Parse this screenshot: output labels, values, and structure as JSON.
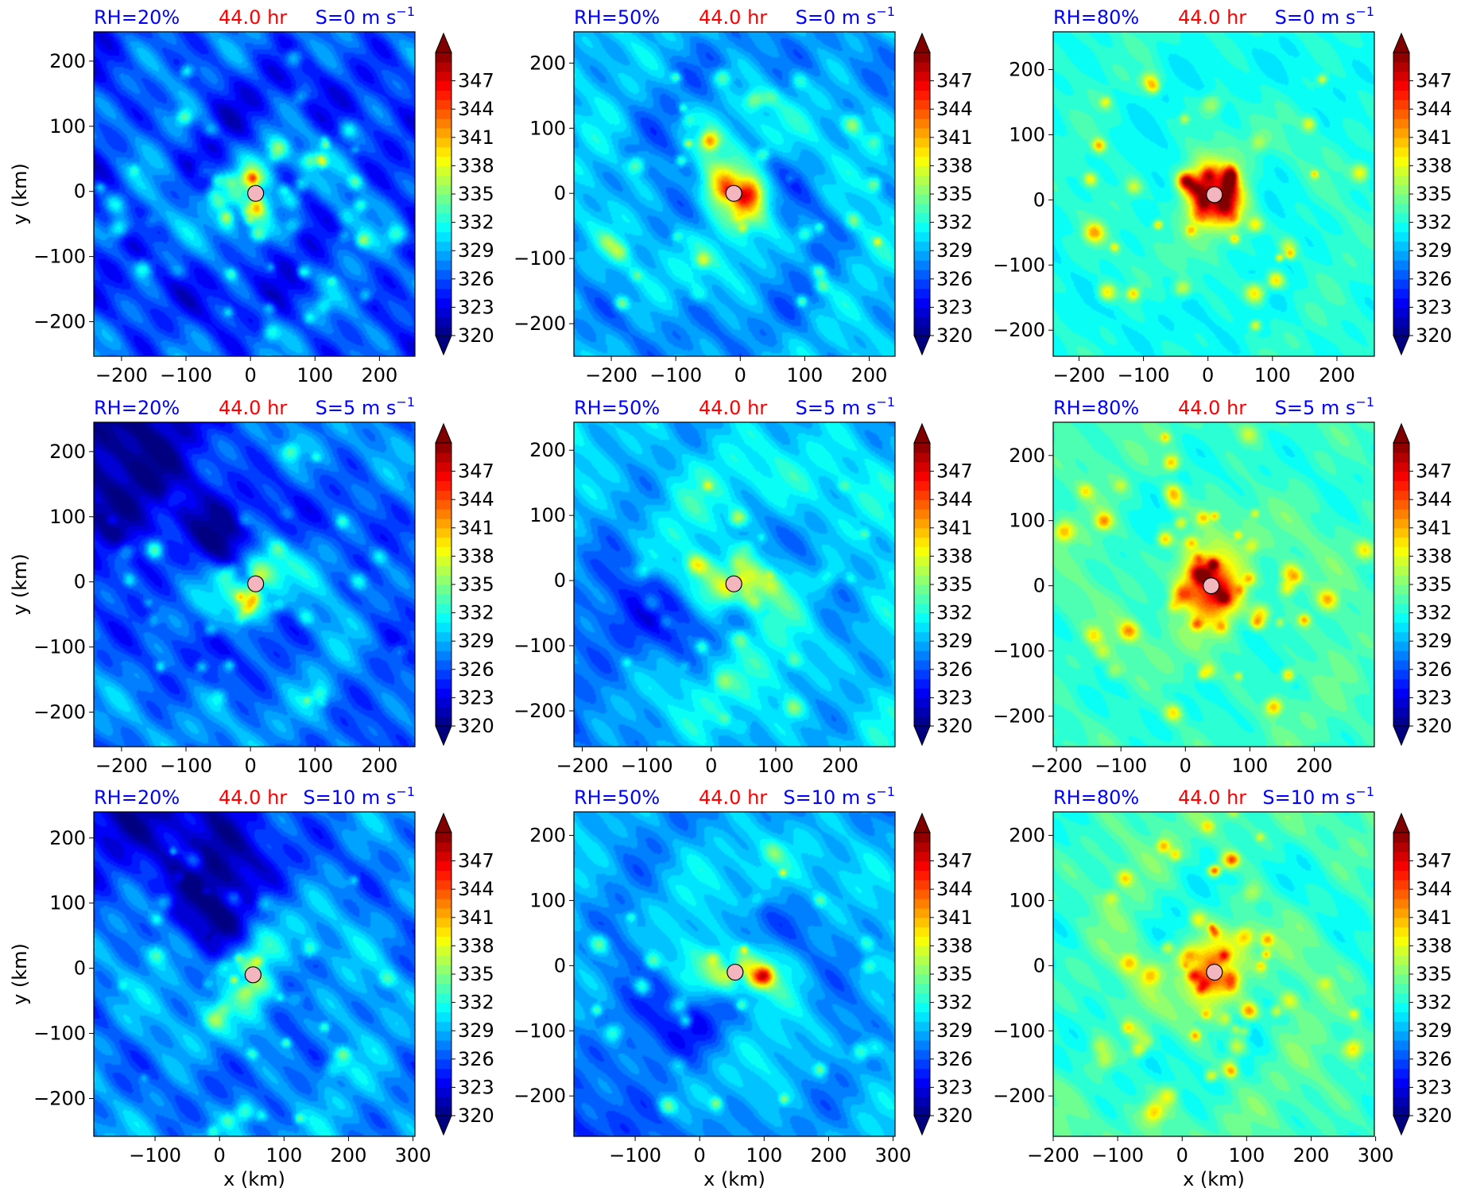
{
  "figure": {
    "xlabel": "x (km)",
    "ylabel": "y (km)",
    "colorbar_ticks": [
      320,
      323,
      326,
      329,
      332,
      335,
      338,
      341,
      344,
      347
    ],
    "colorbar_range": [
      320,
      350
    ],
    "colorbar_extend": "both",
    "colormap": "jet",
    "title_colors": {
      "rh": "#0000ff",
      "time": "#ff0000",
      "shear": "#0000ff"
    },
    "marker_color": "#f4b6be"
  },
  "chart_data": [
    {
      "type": "heatmap",
      "rh_label": "RH=20%",
      "time_label": "44.0 hr",
      "shear_label": "S=0 m s",
      "shear_exp": "−1",
      "x_ticks": [
        -200,
        -100,
        0,
        100,
        200
      ],
      "y_ticks": [
        200,
        100,
        0,
        -100,
        -200
      ],
      "xlim": [
        -243,
        255
      ],
      "ylim": [
        -253,
        245
      ],
      "center": [
        8,
        -3
      ],
      "bg_level": 326,
      "core_level": 334,
      "spiral_amp": 3,
      "noise_amp": 2.2,
      "gap_strength": 0,
      "cells": 0.8,
      "cell_level": 334
    },
    {
      "type": "heatmap",
      "rh_label": "RH=50%",
      "time_label": "44.0 hr",
      "shear_label": "S=0 m s",
      "shear_exp": "−1",
      "x_ticks": [
        -200,
        -100,
        0,
        100,
        200
      ],
      "y_ticks": [
        200,
        100,
        0,
        -100,
        -200
      ],
      "xlim": [
        -258,
        240
      ],
      "ylim": [
        -250,
        248
      ],
      "center": [
        -10,
        0
      ],
      "bg_level": 329,
      "core_level": 343,
      "spiral_amp": 3,
      "noise_amp": 1.6,
      "gap_strength": 0,
      "cells": 0.5,
      "cell_level": 336
    },
    {
      "type": "heatmap",
      "rh_label": "RH=80%",
      "time_label": "44.0 hr",
      "shear_label": "S=0 m s",
      "shear_exp": "−1",
      "x_ticks": [
        -200,
        -100,
        0,
        100,
        200
      ],
      "y_ticks": [
        200,
        100,
        0,
        -100,
        -200
      ],
      "xlim": [
        -240,
        258
      ],
      "ylim": [
        -240,
        258
      ],
      "center": [
        10,
        8
      ],
      "bg_level": 332,
      "core_level": 348,
      "spiral_amp": 1.5,
      "noise_amp": 0.8,
      "gap_strength": 0,
      "cells": 0.6,
      "cell_level": 342
    },
    {
      "type": "heatmap",
      "rh_label": "RH=20%",
      "time_label": "44.0 hr",
      "shear_label": "S=5 m s",
      "shear_exp": "−1",
      "x_ticks": [
        -200,
        -100,
        0,
        100,
        200
      ],
      "y_ticks": [
        200,
        100,
        0,
        -100,
        -200
      ],
      "xlim": [
        -243,
        255
      ],
      "ylim": [
        -253,
        245
      ],
      "center": [
        8,
        -3
      ],
      "bg_level": 327,
      "core_level": 336,
      "spiral_amp": 3,
      "noise_amp": 1.8,
      "gap_strength": 6,
      "gap_dir": 135,
      "cells": 0.5,
      "cell_level": 333
    },
    {
      "type": "heatmap",
      "rh_label": "RH=50%",
      "time_label": "44.0 hr",
      "shear_label": "S=5 m s",
      "shear_exp": "−1",
      "x_ticks": [
        -200,
        -100,
        0,
        100,
        200
      ],
      "y_ticks": [
        200,
        100,
        0,
        -100,
        -200
      ],
      "xlim": [
        -213,
        285
      ],
      "ylim": [
        -255,
        243
      ],
      "center": [
        35,
        -5
      ],
      "bg_level": 330,
      "core_level": 337,
      "spiral_amp": 3,
      "noise_amp": 1.4,
      "gap_strength": 4,
      "gap_dir": 200,
      "cells": 0.4,
      "cell_level": 336
    },
    {
      "type": "heatmap",
      "rh_label": "RH=80%",
      "time_label": "44.0 hr",
      "shear_label": "S=5 m s",
      "shear_exp": "−1",
      "x_ticks": [
        -200,
        -100,
        0,
        100,
        200
      ],
      "y_ticks": [
        200,
        100,
        0,
        -100,
        -200
      ],
      "xlim": [
        -205,
        293
      ],
      "ylim": [
        -247,
        251
      ],
      "center": [
        40,
        0
      ],
      "bg_level": 333,
      "core_level": 349,
      "spiral_amp": 1.8,
      "noise_amp": 0.9,
      "gap_strength": 0,
      "cells": 0.7,
      "cell_level": 343
    },
    {
      "type": "heatmap",
      "rh_label": "RH=20%",
      "time_label": "44.0 hr",
      "shear_label": "S=10 m s",
      "shear_exp": "−1",
      "x_ticks": [
        -100,
        0,
        100,
        200,
        300
      ],
      "y_ticks": [
        200,
        100,
        0,
        -100,
        -200
      ],
      "xlim": [
        -195,
        303
      ],
      "ylim": [
        -258,
        240
      ],
      "center": [
        52,
        -10
      ],
      "bg_level": 328,
      "core_level": 334,
      "spiral_amp": 2.5,
      "noise_amp": 1.8,
      "gap_strength": 7,
      "gap_dir": 115,
      "cells": 0.5,
      "cell_level": 334
    },
    {
      "type": "heatmap",
      "rh_label": "RH=50%",
      "time_label": "44.0 hr",
      "shear_label": "S=10 m s",
      "shear_exp": "−1",
      "x_ticks": [
        -100,
        0,
        100,
        200,
        300
      ],
      "y_ticks": [
        200,
        100,
        0,
        -100,
        -200
      ],
      "xlim": [
        -195,
        303
      ],
      "ylim": [
        -262,
        236
      ],
      "center": [
        55,
        -10
      ],
      "bg_level": 329,
      "core_level": 336,
      "spiral_amp": 3,
      "noise_amp": 1.3,
      "gap_strength": 3,
      "gap_dir": 225,
      "cells": 0.4,
      "cell_level": 337
    },
    {
      "type": "heatmap",
      "rh_label": "RH=80%",
      "time_label": "44.0 hr",
      "shear_label": "S=10 m s",
      "shear_exp": "−1",
      "x_ticks": [
        -200,
        -100,
        0,
        100,
        200,
        300
      ],
      "y_ticks": [
        200,
        100,
        0,
        -100,
        -200
      ],
      "xlim": [
        -200,
        298
      ],
      "ylim": [
        -262,
        236
      ],
      "center": [
        50,
        -10
      ],
      "bg_level": 333,
      "core_level": 342,
      "spiral_amp": 2.2,
      "noise_amp": 1.1,
      "gap_strength": 0,
      "cells": 0.8,
      "cell_level": 342
    }
  ]
}
